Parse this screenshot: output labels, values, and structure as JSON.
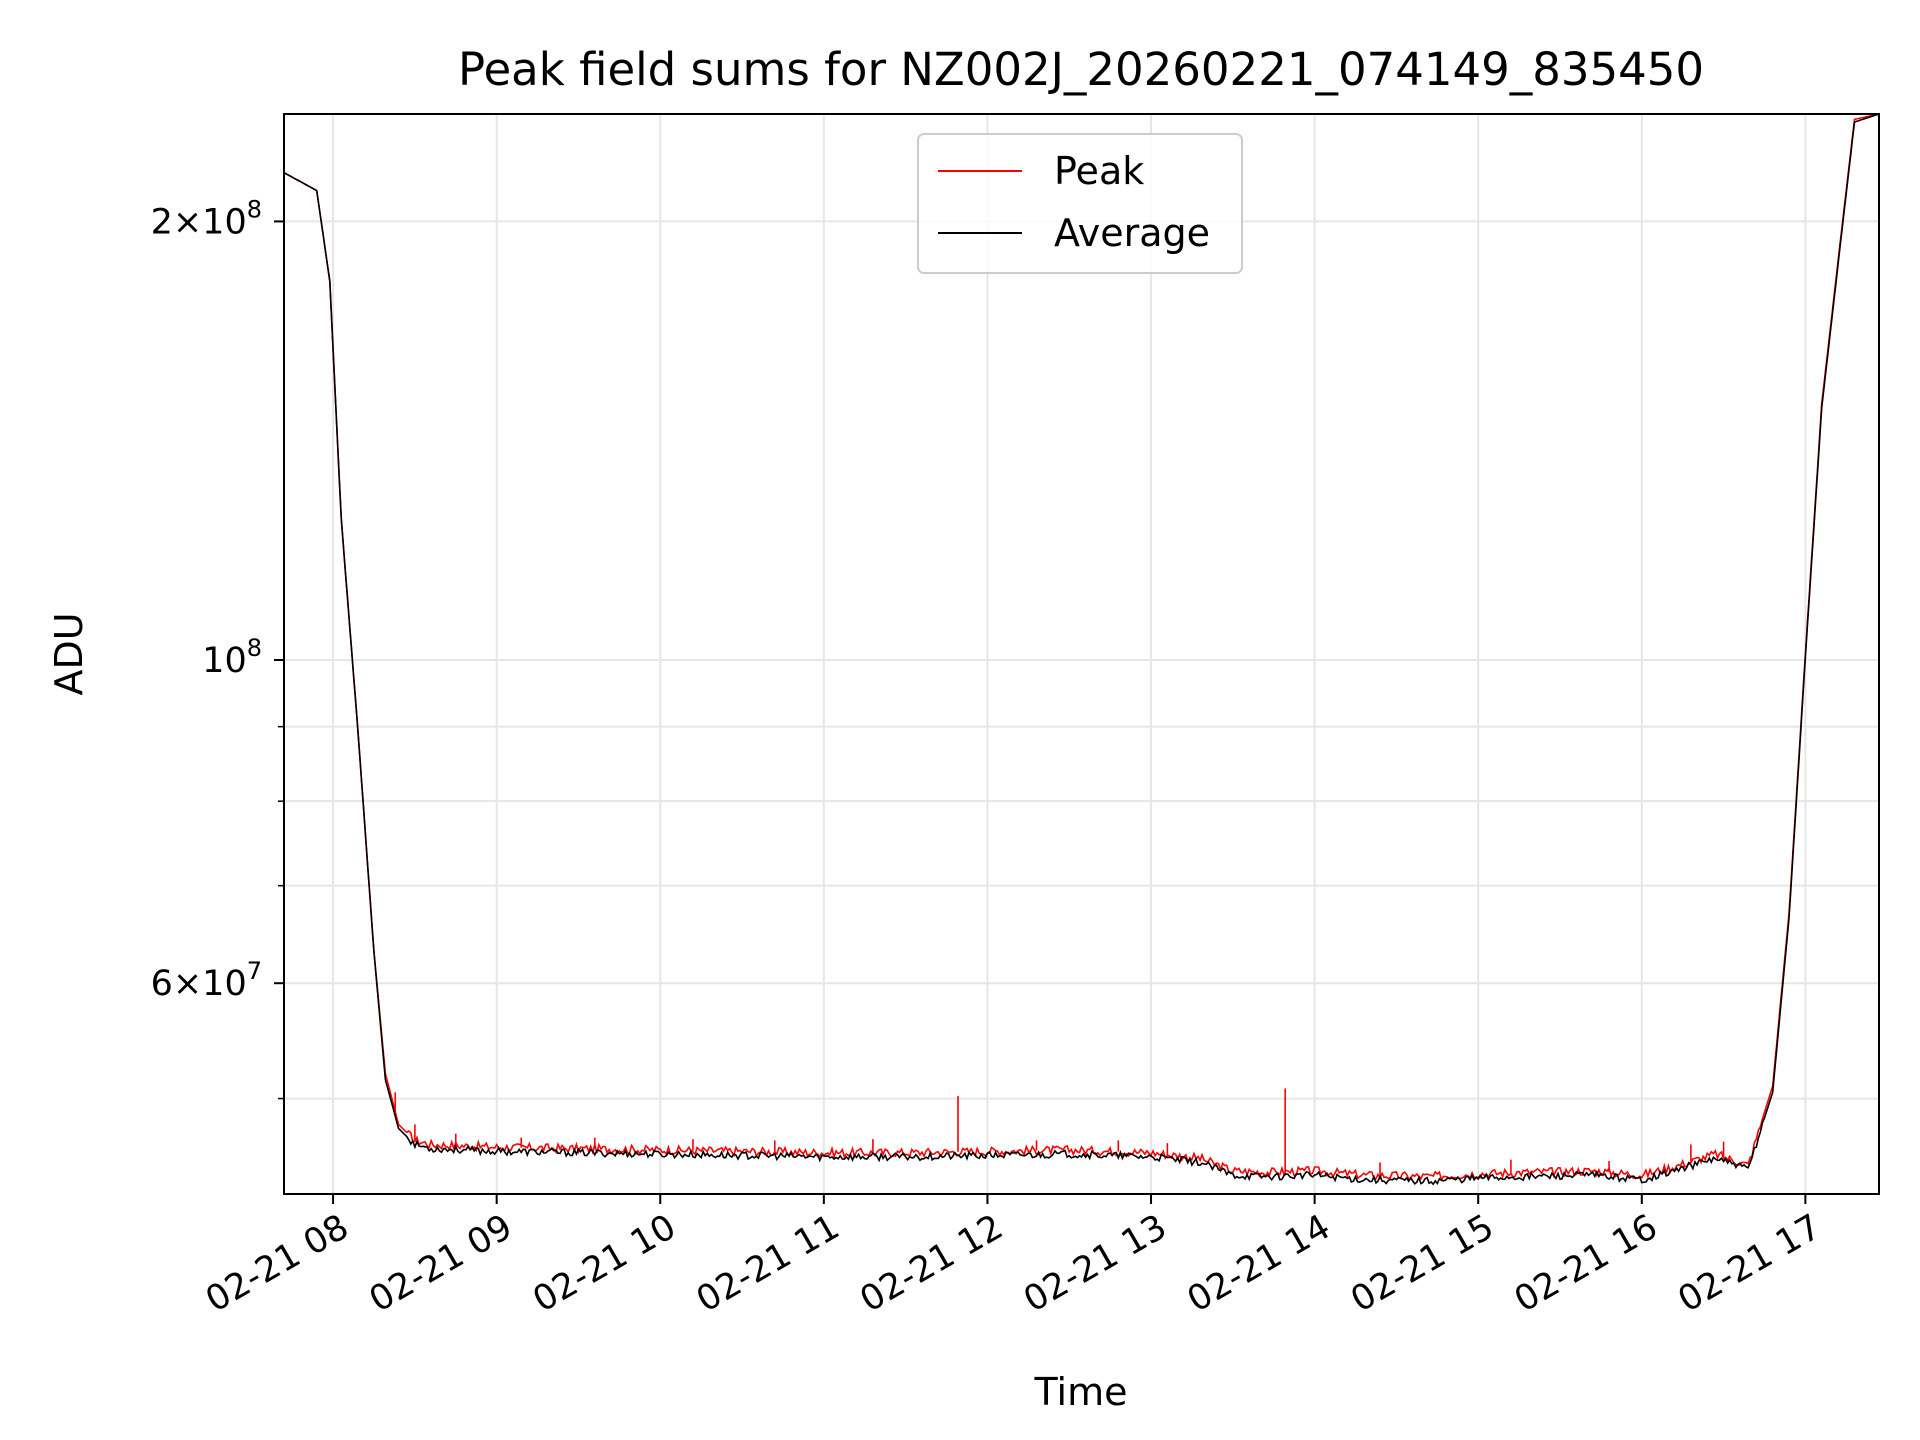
{
  "chart_data": {
    "type": "line",
    "title": "Peak field sums for NZ002J_20260221_074149_835450",
    "xlabel": "Time",
    "ylabel": "ADU",
    "yscale": "log",
    "ylim": [
      43000000,
      237000000
    ],
    "x_hours_range": [
      7.7,
      17.45
    ],
    "grid": true,
    "legend_position": "top-center",
    "x_ticks": [
      {
        "hour": 8,
        "label": "02-21 08"
      },
      {
        "hour": 9,
        "label": "02-21 09"
      },
      {
        "hour": 10,
        "label": "02-21 10"
      },
      {
        "hour": 11,
        "label": "02-21 11"
      },
      {
        "hour": 12,
        "label": "02-21 12"
      },
      {
        "hour": 13,
        "label": "02-21 13"
      },
      {
        "hour": 14,
        "label": "02-21 14"
      },
      {
        "hour": 15,
        "label": "02-21 15"
      },
      {
        "hour": 16,
        "label": "02-21 16"
      },
      {
        "hour": 17,
        "label": "02-21 17"
      }
    ],
    "y_major_ticks": [
      {
        "value": 200000000,
        "mantissa": "2",
        "exponent": "8"
      },
      {
        "value": 100000000,
        "mantissa": "",
        "exponent": "8"
      },
      {
        "value": 60000000,
        "mantissa": "6",
        "exponent": "7"
      }
    ],
    "y_minor_ticks": [
      50000000,
      70000000,
      80000000,
      90000000
    ],
    "series": [
      {
        "name": "Peak",
        "color": "#ff0000",
        "hours": [
          7.7,
          7.9,
          7.98,
          8.05,
          8.15,
          8.25,
          8.32,
          8.4,
          8.5,
          8.6,
          9.0,
          10.0,
          11.0,
          11.5,
          12.0,
          12.5,
          13.0,
          13.3,
          13.5,
          13.7,
          14.0,
          14.3,
          14.7,
          15.0,
          15.3,
          15.7,
          16.0,
          16.2,
          16.45,
          16.65,
          16.8,
          16.9,
          17.0,
          17.1,
          17.2,
          17.3,
          17.45
        ],
        "values": [
          216000000,
          210000000,
          182000000,
          125000000,
          90000000,
          63000000,
          52000000,
          48000000,
          46800000,
          46500000,
          46300000,
          46100000,
          45900000,
          45900000,
          46000000,
          46100000,
          45900000,
          45500000,
          44600000,
          44500000,
          44600000,
          44300000,
          44200000,
          44400000,
          44500000,
          44600000,
          44300000,
          44900000,
          45800000,
          45000000,
          51000000,
          67000000,
          101000000,
          150000000,
          188000000,
          235000000,
          237000000
        ],
        "spikes": [
          {
            "hour": 8.38,
            "value": 50500000
          },
          {
            "hour": 8.5,
            "value": 48000000
          },
          {
            "hour": 8.75,
            "value": 47300000
          },
          {
            "hour": 9.15,
            "value": 47000000
          },
          {
            "hour": 9.6,
            "value": 47000000
          },
          {
            "hour": 10.2,
            "value": 46900000
          },
          {
            "hour": 10.7,
            "value": 46800000
          },
          {
            "hour": 11.3,
            "value": 46900000
          },
          {
            "hour": 11.82,
            "value": 50200000
          },
          {
            "hour": 12.3,
            "value": 46800000
          },
          {
            "hour": 12.8,
            "value": 46800000
          },
          {
            "hour": 13.1,
            "value": 46600000
          },
          {
            "hour": 13.82,
            "value": 50800000
          },
          {
            "hour": 14.4,
            "value": 45200000
          },
          {
            "hour": 15.2,
            "value": 45400000
          },
          {
            "hour": 15.8,
            "value": 45300000
          },
          {
            "hour": 16.3,
            "value": 46500000
          },
          {
            "hour": 16.5,
            "value": 46700000
          }
        ]
      },
      {
        "name": "Average",
        "color": "#000000",
        "hours": [
          7.7,
          7.9,
          7.98,
          8.05,
          8.15,
          8.25,
          8.32,
          8.4,
          8.5,
          8.6,
          9.0,
          10.0,
          11.0,
          11.5,
          12.0,
          12.5,
          13.0,
          13.3,
          13.5,
          13.7,
          14.0,
          14.3,
          14.7,
          15.0,
          15.3,
          15.7,
          16.0,
          16.2,
          16.45,
          16.65,
          16.8,
          16.9,
          17.0,
          17.1,
          17.2,
          17.3,
          17.45
        ],
        "values": [
          216000000,
          210000000,
          182000000,
          125000000,
          90000000,
          63000000,
          51500000,
          47700000,
          46500000,
          46200000,
          46000000,
          45800000,
          45600000,
          45600000,
          45700000,
          45800000,
          45600000,
          45200000,
          44300000,
          44200000,
          44300000,
          44000000,
          43900000,
          44100000,
          44200000,
          44300000,
          44000000,
          44600000,
          45500000,
          44700000,
          50500000,
          66500000,
          100500000,
          149000000,
          187000000,
          234000000,
          237000000
        ]
      }
    ]
  }
}
